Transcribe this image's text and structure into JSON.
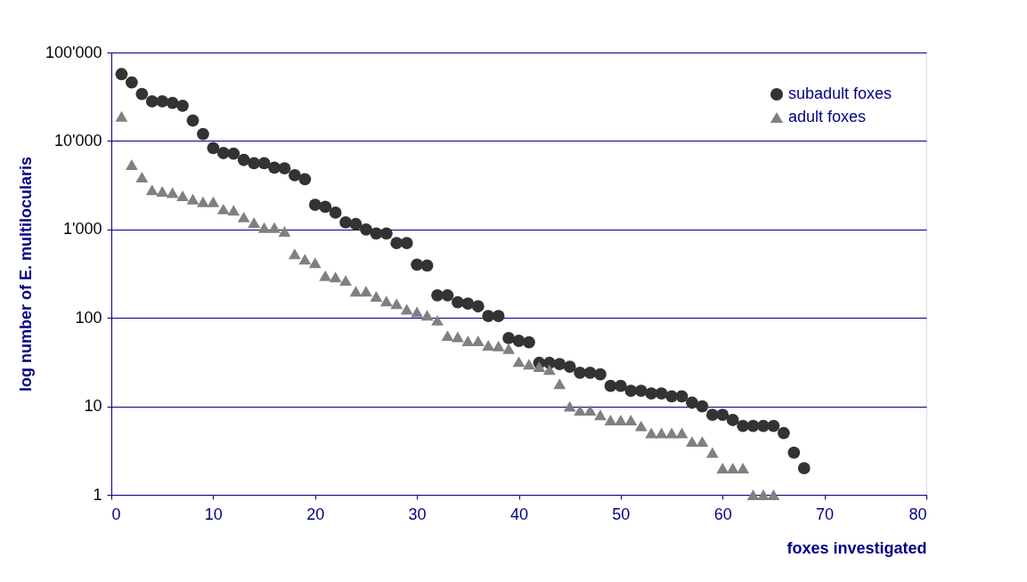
{
  "chart_data": {
    "type": "scatter",
    "xlabel": "foxes investigated",
    "ylabel": "log number of E. multilocularis",
    "log": "y",
    "grid": "y",
    "legend": "top right",
    "xlim": [
      0,
      80
    ],
    "xticks": [
      0,
      10,
      20,
      30,
      40,
      50,
      60,
      70,
      80
    ],
    "ylim": [
      1,
      100000
    ],
    "yticks": [
      1,
      10,
      100,
      {
        "value": 1000,
        "label": "1'000"
      },
      {
        "value": 10000,
        "label": "10'000"
      },
      {
        "value": 100000,
        "label": "100'000"
      }
    ],
    "series": [
      {
        "name": "subadult foxes",
        "color": "#333333",
        "marker": "circle",
        "x": [
          1,
          2,
          3,
          4,
          5,
          6,
          7,
          8,
          9,
          10,
          11,
          12,
          13,
          14,
          15,
          16,
          17,
          18,
          19,
          20,
          21,
          22,
          23,
          24,
          25,
          26,
          27,
          28,
          29,
          30,
          31,
          32,
          33,
          34,
          35,
          36,
          37,
          38,
          39,
          40,
          41,
          42,
          43,
          44,
          45,
          46,
          47,
          48,
          49,
          50,
          51,
          52,
          53,
          54,
          55,
          56,
          57,
          58,
          59,
          60,
          61,
          62,
          63,
          64,
          65,
          66,
          67,
          68
        ],
        "values": [
          57000,
          46000,
          34000,
          28000,
          28000,
          27000,
          25000,
          17000,
          12000,
          8300,
          7300,
          7200,
          6100,
          5600,
          5600,
          5000,
          4900,
          4100,
          3700,
          1900,
          1800,
          1550,
          1200,
          1150,
          1000,
          900,
          900,
          700,
          700,
          400,
          390,
          180,
          180,
          150,
          145,
          135,
          105,
          105,
          59,
          55,
          53,
          31,
          31,
          30,
          28,
          24,
          24,
          23,
          17,
          17,
          15,
          15,
          14,
          14,
          13,
          13,
          11,
          10,
          8,
          8,
          7,
          6,
          6,
          6,
          6,
          5,
          3,
          2
        ]
      },
      {
        "name": "adult foxes",
        "color": "#808080",
        "marker": "triangle",
        "x": [
          1,
          2,
          3,
          4,
          5,
          6,
          7,
          8,
          9,
          10,
          11,
          12,
          13,
          14,
          15,
          16,
          17,
          18,
          19,
          20,
          21,
          22,
          23,
          24,
          25,
          26,
          27,
          28,
          29,
          30,
          31,
          32,
          33,
          34,
          35,
          36,
          37,
          38,
          39,
          40,
          41,
          42,
          43,
          44,
          45,
          46,
          47,
          48,
          49,
          50,
          51,
          52,
          53,
          54,
          55,
          56,
          57,
          58,
          59,
          60,
          61,
          62,
          63,
          64,
          65
        ],
        "values": [
          19000,
          5400,
          3900,
          2800,
          2700,
          2600,
          2400,
          2200,
          2050,
          2050,
          1700,
          1650,
          1380,
          1200,
          1050,
          1050,
          950,
          530,
          460,
          420,
          300,
          290,
          265,
          200,
          200,
          175,
          155,
          145,
          125,
          117,
          107,
          94,
          63,
          61,
          55,
          55,
          49,
          48,
          45,
          32,
          30,
          28,
          26,
          18,
          10,
          9,
          9,
          8,
          7,
          7,
          7,
          6,
          5,
          5,
          5,
          5,
          4,
          4,
          3,
          2,
          2,
          2,
          1,
          1,
          1
        ]
      }
    ]
  }
}
